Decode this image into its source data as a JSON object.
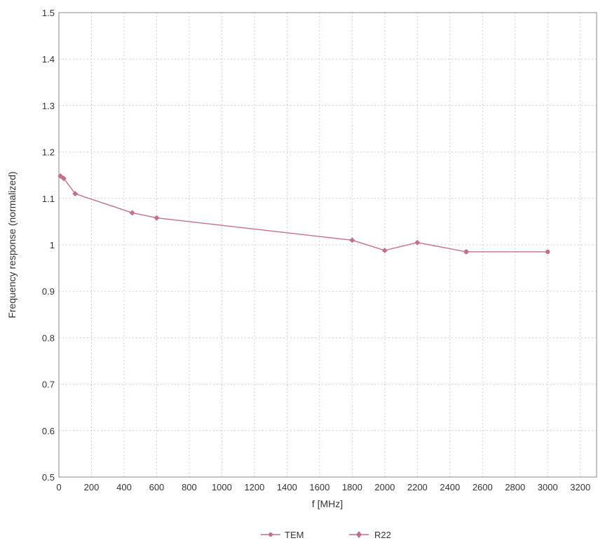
{
  "chart_data": {
    "type": "line",
    "title": "",
    "xlabel": "f [MHz]",
    "ylabel": "Frequency response (normalized)",
    "xlim": [
      0,
      3300
    ],
    "ylim": [
      0.5,
      1.5
    ],
    "x_ticks": [
      "0",
      "200",
      "400",
      "600",
      "800",
      "1000",
      "1200",
      "1400",
      "1600",
      "1800",
      "2000",
      "2200",
      "2400",
      "2600",
      "2800",
      "3000",
      "3200"
    ],
    "y_ticks": [
      "0.5",
      "0.6",
      "0.7",
      "0.8",
      "0.9",
      "1",
      "1.1",
      "1.2",
      "1.3",
      "1.4",
      "1.5"
    ],
    "grid": true,
    "legend_position": "bottom-center",
    "series": [
      {
        "name": "TEM",
        "color": "#c4708a",
        "marker": "circle",
        "points": [
          [
            2500,
            0.985
          ],
          [
            3000,
            0.985
          ]
        ]
      },
      {
        "name": "R22",
        "color": "#c4708a",
        "marker": "diamond",
        "points": [
          [
            10,
            1.148
          ],
          [
            30,
            1.143
          ],
          [
            100,
            1.11
          ],
          [
            450,
            1.069
          ],
          [
            600,
            1.058
          ],
          [
            1800,
            1.01
          ],
          [
            2000,
            0.988
          ],
          [
            2200,
            1.005
          ],
          [
            2500,
            0.985
          ]
        ]
      }
    ]
  }
}
